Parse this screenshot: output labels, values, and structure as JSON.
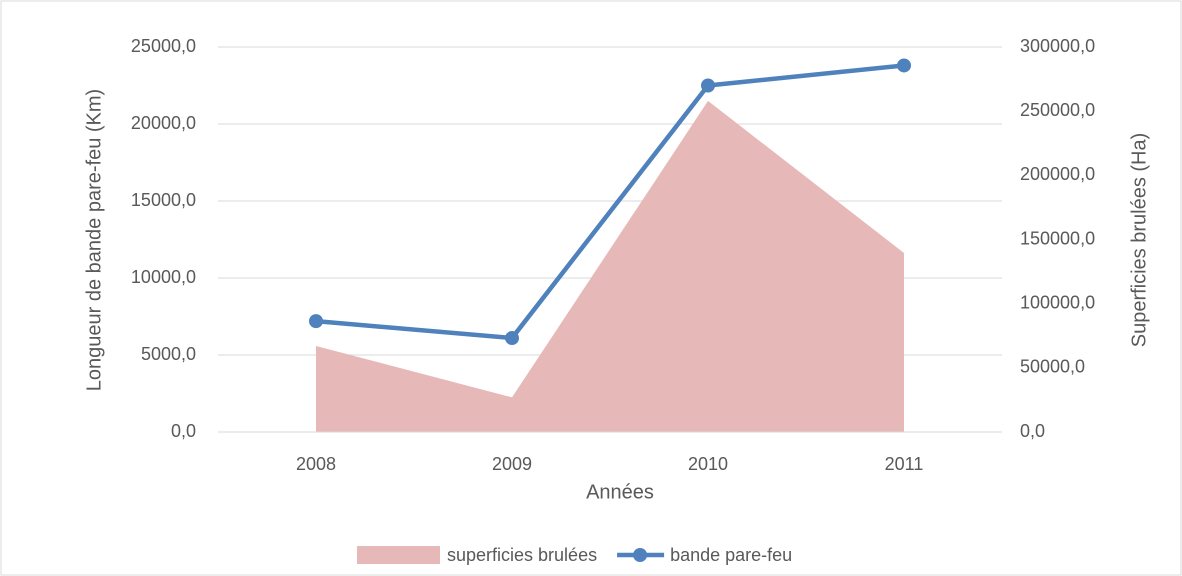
{
  "chart_data": {
    "type": "combo",
    "x_label": "Années",
    "y_label": "Longueur de bande pare-feu (Km)",
    "y2_label": "Superficies brulées (Ha)",
    "categories": [
      "2008",
      "2009",
      "2010",
      "2011"
    ],
    "series": [
      {
        "name": "superficies brulées",
        "type": "area",
        "axis": "y2",
        "color": "#e6b9b8",
        "values": [
          67000,
          27000,
          258000,
          139500
        ]
      },
      {
        "name": "bande pare-feu",
        "type": "line",
        "axis": "y",
        "color": "#4f81bd",
        "values": [
          7200,
          6100,
          22500,
          23800
        ]
      }
    ],
    "ylim": [
      0,
      25000
    ],
    "yticks": [
      {
        "value": 0,
        "label": "0,0"
      },
      {
        "value": 5000,
        "label": "5000,0"
      },
      {
        "value": 10000,
        "label": "10000,0"
      },
      {
        "value": 15000,
        "label": "15000,0"
      },
      {
        "value": 20000,
        "label": "20000,0"
      },
      {
        "value": 25000,
        "label": "25000,0"
      }
    ],
    "y2lim": [
      0,
      300000
    ],
    "y2ticks": [
      {
        "value": 0,
        "label": "0,0"
      },
      {
        "value": 50000,
        "label": "50000,0"
      },
      {
        "value": 100000,
        "label": "100000,0"
      },
      {
        "value": 150000,
        "label": "150000,0"
      },
      {
        "value": 200000,
        "label": "200000,0"
      },
      {
        "value": 250000,
        "label": "250000,0"
      },
      {
        "value": 300000,
        "label": "300000,0"
      }
    ],
    "grid": true,
    "legend": "bottom"
  }
}
